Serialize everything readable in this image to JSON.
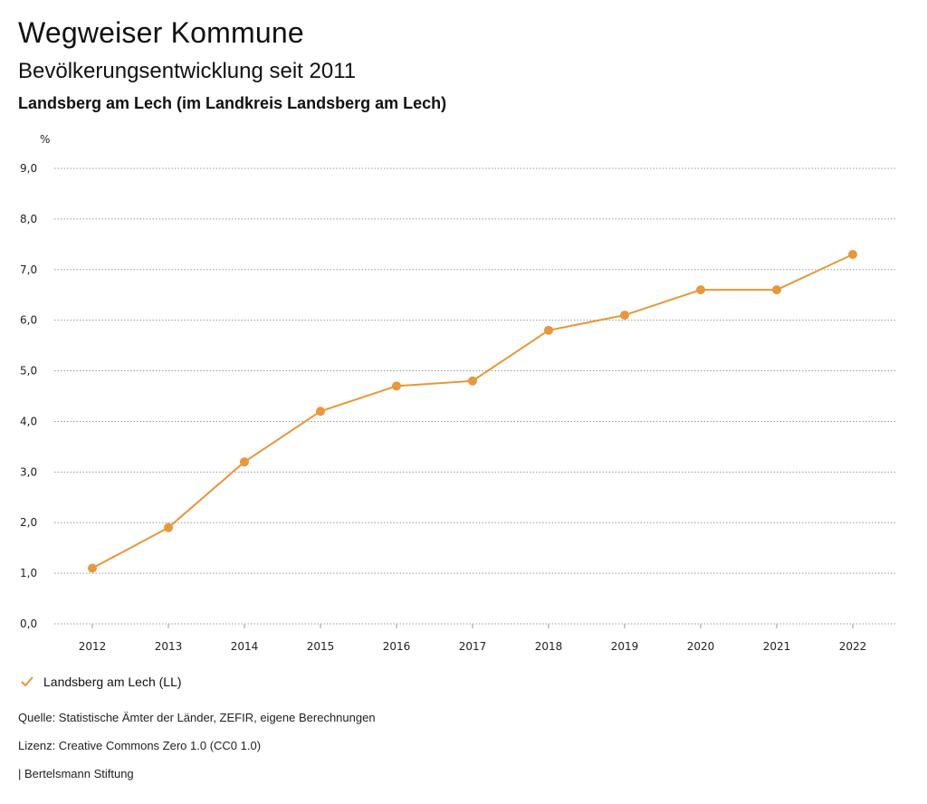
{
  "header": {
    "title": "Wegweiser Kommune",
    "subtitle": "Bevölkerungsentwicklung seit 2011",
    "region": "Landsberg am Lech (im Landkreis Landsberg am Lech)"
  },
  "colors": {
    "series": "#E8973A",
    "grid": "#9a9a9a",
    "text": "#222222"
  },
  "legend": {
    "icon": "checkmark-icon",
    "label": "Landsberg am Lech (LL)"
  },
  "footer": {
    "source": "Quelle: Statistische Ämter der Länder, ZEFIR, eigene Berechnungen",
    "license": "Lizenz: Creative Commons Zero 1.0 (CC0 1.0)",
    "publisher": "| Bertelsmann Stiftung"
  },
  "chart_data": {
    "type": "line",
    "title": "",
    "xlabel": "",
    "ylabel": "%",
    "categories": [
      "2012",
      "2013",
      "2014",
      "2015",
      "2016",
      "2017",
      "2018",
      "2019",
      "2020",
      "2021",
      "2022"
    ],
    "series": [
      {
        "name": "Landsberg am Lech (LL)",
        "values": [
          1.1,
          1.9,
          3.2,
          4.2,
          4.7,
          4.8,
          5.8,
          6.1,
          6.6,
          6.6,
          7.3
        ]
      }
    ],
    "ylim": [
      0,
      9
    ],
    "yticks": [
      "0,0",
      "1,0",
      "2,0",
      "3,0",
      "4,0",
      "5,0",
      "6,0",
      "7,0",
      "8,0",
      "9,0"
    ],
    "grid": true,
    "legend_position": "bottom-left"
  }
}
